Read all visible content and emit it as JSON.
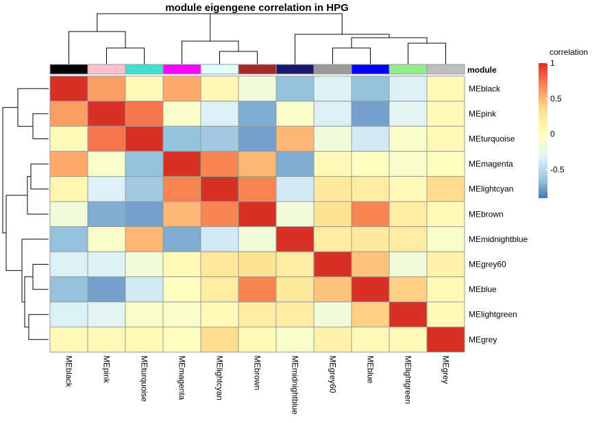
{
  "chart_data": {
    "type": "heatmap",
    "title": "module eigengene correlation in HPG",
    "rows": [
      "MEblack",
      "MEpink",
      "MEturquoise",
      "MEmagenta",
      "MElightcyan",
      "MEbrown",
      "MEmidnightblue",
      "MEgrey60",
      "MEblue",
      "MElightgreen",
      "MEgrey"
    ],
    "columns": [
      "MEblack",
      "MEpink",
      "MEturquoise",
      "MEmagenta",
      "MElightcyan",
      "MEbrown",
      "MEmidnightblue",
      "MEgrey60",
      "MEblue",
      "MElightgreen",
      "MEgrey"
    ],
    "values": [
      [
        1.0,
        0.6,
        0.05,
        0.55,
        0.1,
        -0.15,
        -0.65,
        -0.35,
        -0.65,
        -0.35,
        0.05
      ],
      [
        0.6,
        1.0,
        0.75,
        -0.05,
        -0.35,
        -0.75,
        -0.05,
        -0.35,
        -0.8,
        -0.3,
        0.05
      ],
      [
        0.05,
        0.75,
        1.0,
        -0.65,
        -0.6,
        -0.8,
        0.5,
        -0.15,
        -0.4,
        -0.05,
        0.05
      ],
      [
        0.55,
        -0.05,
        -0.65,
        1.0,
        0.7,
        0.5,
        -0.75,
        0.05,
        0.0,
        -0.05,
        0.0
      ],
      [
        0.1,
        -0.35,
        -0.6,
        0.7,
        1.0,
        0.7,
        -0.4,
        0.25,
        0.2,
        0.05,
        0.35
      ],
      [
        -0.15,
        -0.75,
        -0.8,
        0.5,
        0.7,
        1.0,
        -0.15,
        0.3,
        0.7,
        0.2,
        0.05
      ],
      [
        -0.65,
        -0.05,
        0.5,
        -0.75,
        -0.4,
        -0.15,
        1.0,
        0.2,
        0.25,
        0.2,
        -0.05
      ],
      [
        -0.35,
        -0.35,
        -0.15,
        0.05,
        0.25,
        0.3,
        0.2,
        1.0,
        0.45,
        -0.15,
        0.15
      ],
      [
        -0.65,
        -0.8,
        -0.4,
        0.0,
        0.2,
        0.7,
        0.25,
        0.45,
        1.0,
        0.4,
        0.05
      ],
      [
        -0.35,
        -0.3,
        -0.05,
        -0.05,
        0.05,
        0.2,
        0.2,
        -0.15,
        0.4,
        1.0,
        0.05
      ],
      [
        0.05,
        0.05,
        0.05,
        0.0,
        0.35,
        0.05,
        -0.05,
        0.15,
        0.05,
        0.05,
        1.0
      ]
    ],
    "col_annotation": {
      "name": "module",
      "colors": [
        "#000000",
        "#FFC0CB",
        "#40E0D0",
        "#FF00FF",
        "#E0FFFF",
        "#A52A2A",
        "#191970",
        "#999999",
        "#0000FF",
        "#90EE90",
        "#BEBEBE"
      ]
    },
    "legend": {
      "title": "correlation",
      "ticks": [
        "1",
        "0.5",
        "0",
        "-0.5"
      ],
      "tick_values": [
        1,
        0.5,
        0,
        -0.5
      ],
      "range": [
        -0.9,
        1
      ],
      "placement": "top-right"
    },
    "color_scale": [
      "#4575B4",
      "#91BFDB",
      "#E0F3F8",
      "#FFFFBF",
      "#FEE090",
      "#FC8D59",
      "#D73027"
    ]
  }
}
